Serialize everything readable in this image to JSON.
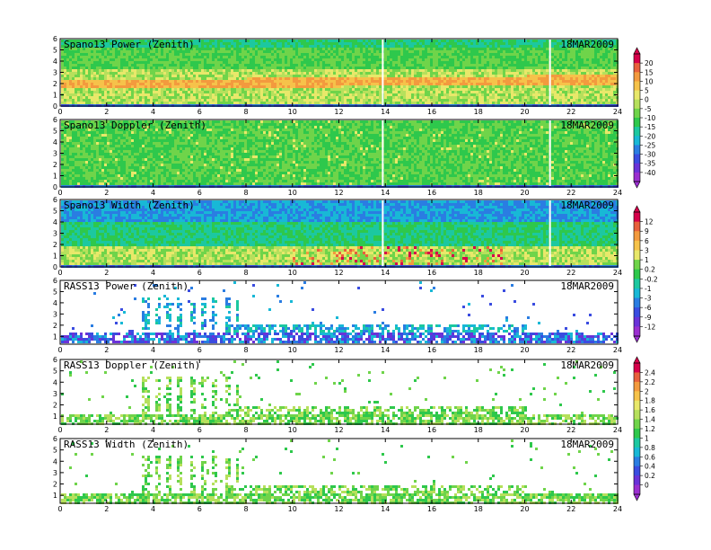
{
  "chart_data": [
    {
      "type": "heatmap",
      "title": "Spano13  Power  (Zenith)",
      "date": "18MAR2009",
      "x_ticks": [
        0,
        2,
        4,
        6,
        8,
        10,
        12,
        14,
        16,
        18,
        20,
        22,
        24
      ],
      "y_ticks": [
        0,
        1,
        2,
        3,
        4,
        5,
        6
      ],
      "xlim": [
        0,
        24
      ],
      "ylim": [
        0,
        6
      ]
    },
    {
      "type": "heatmap",
      "title": "Spano13  Doppler  (Zenith)",
      "date": "18MAR2009",
      "x_ticks": [
        0,
        2,
        4,
        6,
        8,
        10,
        12,
        14,
        16,
        18,
        20,
        22,
        24
      ],
      "y_ticks": [
        0,
        1,
        2,
        3,
        4,
        5,
        6
      ],
      "xlim": [
        0,
        24
      ],
      "ylim": [
        0,
        6
      ]
    },
    {
      "type": "heatmap",
      "title": "Spano13  Width  (Zenith)",
      "date": "18MAR2009",
      "x_ticks": [
        0,
        2,
        4,
        6,
        8,
        10,
        12,
        14,
        16,
        18,
        20,
        22,
        24
      ],
      "y_ticks": [
        0,
        1,
        2,
        3,
        4,
        5,
        6
      ],
      "xlim": [
        0,
        24
      ],
      "ylim": [
        0,
        6
      ]
    },
    {
      "type": "heatmap",
      "title": "RASS13  Power  (Zenith)",
      "date": "18MAR2009",
      "x_ticks": [
        0,
        2,
        4,
        6,
        8,
        10,
        12,
        14,
        16,
        18,
        20,
        22,
        24
      ],
      "y_ticks": [
        1,
        2,
        3,
        4,
        5,
        6
      ],
      "xlim": [
        0,
        24
      ],
      "ylim": [
        0.3,
        6
      ]
    },
    {
      "type": "heatmap",
      "title": "RASS13  Doppler  (Zenith)",
      "date": "18MAR2009",
      "x_ticks": [
        0,
        2,
        4,
        6,
        8,
        10,
        12,
        14,
        16,
        18,
        20,
        22,
        24
      ],
      "y_ticks": [
        1,
        2,
        3,
        4,
        5,
        6
      ],
      "xlim": [
        0,
        24
      ],
      "ylim": [
        0.3,
        6
      ]
    },
    {
      "type": "heatmap",
      "title": "RASS13  Width  (Zenith)",
      "date": "18MAR2009",
      "x_ticks": [
        0,
        2,
        4,
        6,
        8,
        10,
        12,
        14,
        16,
        18,
        20,
        22,
        24
      ],
      "y_ticks": [
        1,
        2,
        3,
        4,
        5,
        6
      ],
      "xlim": [
        0,
        24
      ],
      "ylim": [
        0.3,
        6
      ]
    }
  ],
  "colorbars": [
    {
      "labels": [
        "20",
        "15",
        "10",
        "5",
        "0",
        "-5",
        "-10",
        "-15",
        "-20",
        "-25",
        "-30",
        "-35",
        "-40"
      ],
      "colors": [
        "#d6004a",
        "#e8603c",
        "#f39a3e",
        "#f6c24a",
        "#e8e86a",
        "#b6e05c",
        "#6fd44a",
        "#2ec84c",
        "#1cc8a0",
        "#18b8d6",
        "#2a7de2",
        "#3a4ce0",
        "#6a32d8",
        "#9b2fd0"
      ]
    },
    {
      "labels": [
        "12",
        "9",
        "6",
        "3",
        "1",
        "0.2",
        "-0.2",
        "-1",
        "-3",
        "-6",
        "-9",
        "-12"
      ],
      "colors": [
        "#d6004a",
        "#e8603c",
        "#f39a3e",
        "#f6c24a",
        "#e8e86a",
        "#6fd44a",
        "#2ec84c",
        "#1cc8a0",
        "#18b8d6",
        "#2a7de2",
        "#3a4ce0",
        "#6a32d8",
        "#9b2fd0"
      ]
    },
    {
      "labels": [
        "2.4",
        "2.2",
        "2",
        "1.8",
        "1.6",
        "1.4",
        "1.2",
        "1",
        "0.8",
        "0.6",
        "0.4",
        "0.2",
        "0"
      ],
      "colors": [
        "#d6004a",
        "#e8603c",
        "#f39a3e",
        "#f6c24a",
        "#e8e86a",
        "#b6e05c",
        "#6fd44a",
        "#2ec84c",
        "#1cc8a0",
        "#18b8d6",
        "#2a7de2",
        "#3a4ce0",
        "#6a32d8",
        "#9b2fd0"
      ]
    }
  ]
}
